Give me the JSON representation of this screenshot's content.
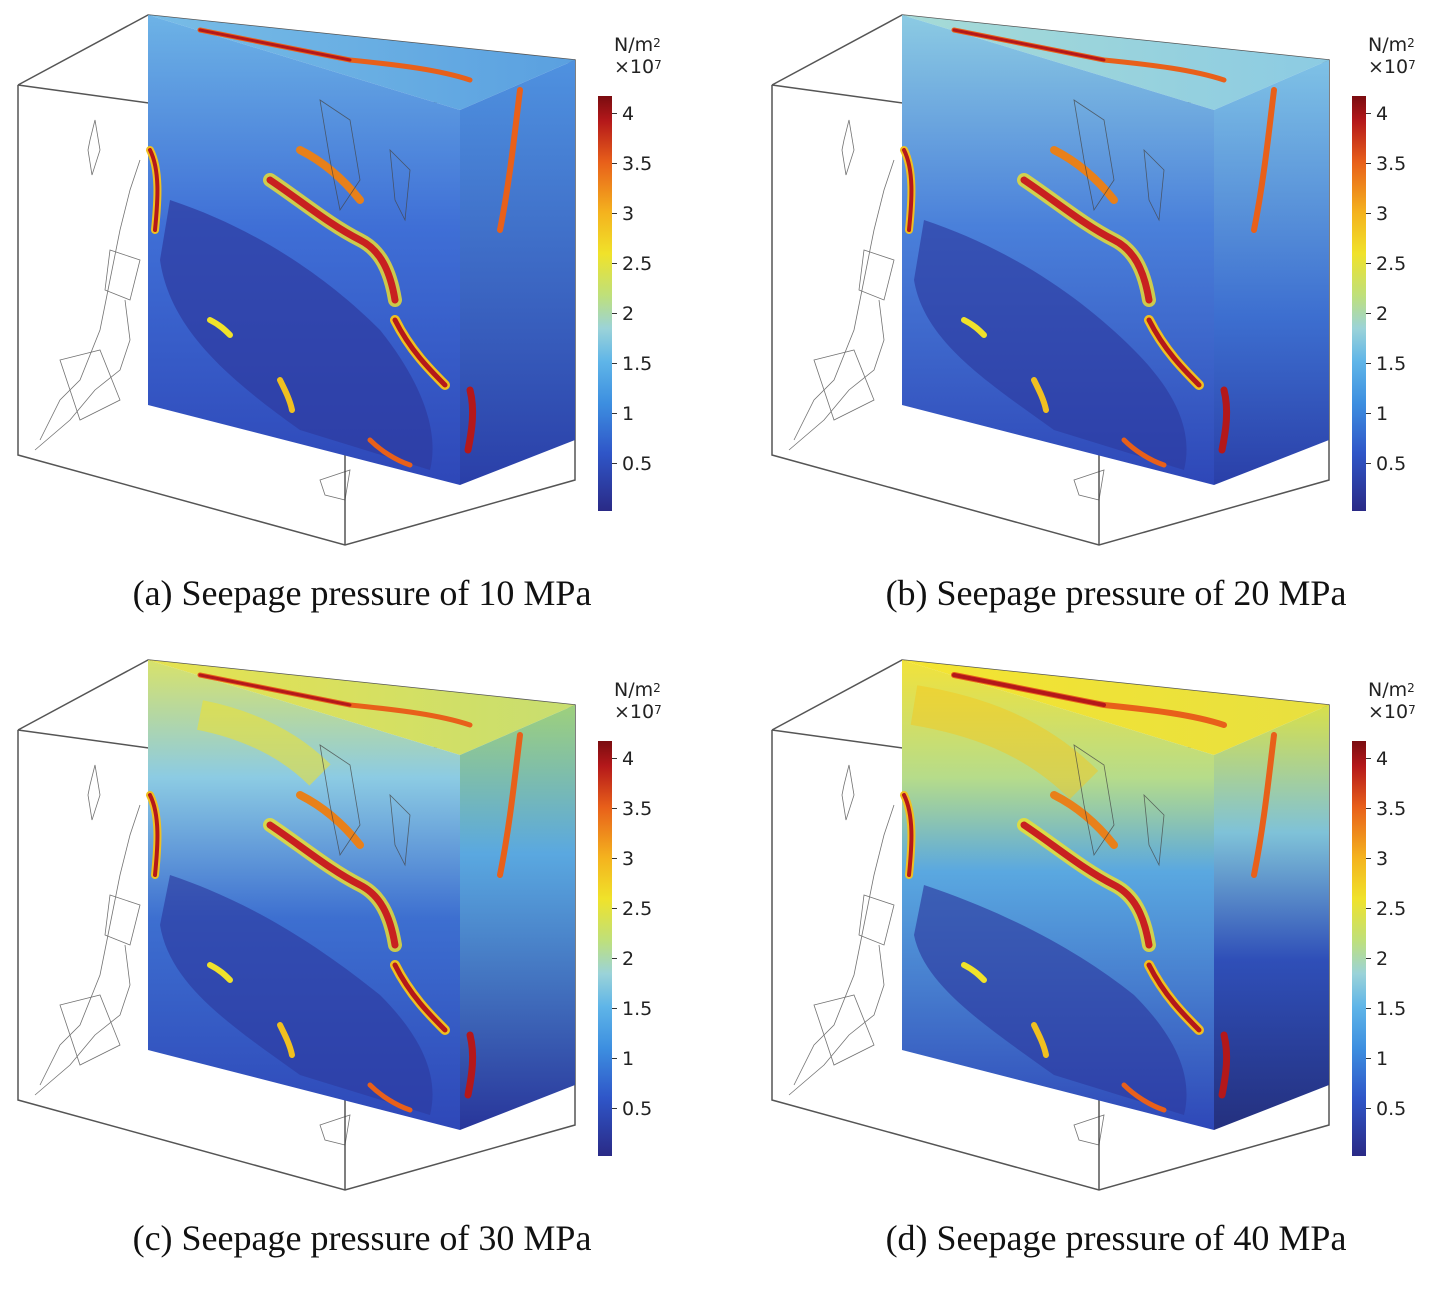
{
  "figure": {
    "panels": [
      {
        "caption": "(a) Seepage pressure of 10 MPa",
        "seepage_pressure_MPa": 10,
        "colorbar": {
          "unit": "N/m",
          "unit_exp": "2",
          "scale": "×10",
          "scale_exp": "7",
          "ticks": [
            "4",
            "3.5",
            "3",
            "2.5",
            "2",
            "1.5",
            "1",
            "0.5"
          ],
          "range": [
            0,
            4.2
          ]
        }
      },
      {
        "caption": "(b) Seepage pressure of 20 MPa",
        "seepage_pressure_MPa": 20,
        "colorbar": {
          "unit": "N/m",
          "unit_exp": "2",
          "scale": "×10",
          "scale_exp": "7",
          "ticks": [
            "4",
            "3.5",
            "3",
            "2.5",
            "2",
            "1.5",
            "1",
            "0.5"
          ],
          "range": [
            0,
            4.2
          ]
        }
      },
      {
        "caption": "(c) Seepage pressure of 30 MPa",
        "seepage_pressure_MPa": 30,
        "colorbar": {
          "unit": "N/m",
          "unit_exp": "2",
          "scale": "×10",
          "scale_exp": "7",
          "ticks": [
            "4",
            "3.5",
            "3",
            "2.5",
            "2",
            "1.5",
            "1",
            "0.5"
          ],
          "range": [
            0,
            4.2
          ]
        }
      },
      {
        "caption": "(d) Seepage pressure of 40 MPa",
        "seepage_pressure_MPa": 40,
        "colorbar": {
          "unit": "N/m",
          "unit_exp": "2",
          "scale": "×10",
          "scale_exp": "7",
          "ticks": [
            "4",
            "3.5",
            "3",
            "2.5",
            "2",
            "1.5",
            "1",
            "0.5"
          ],
          "range": [
            0,
            4.2
          ]
        }
      }
    ]
  },
  "colors": {
    "low": "#2a2a86",
    "mid": "#8fd0e0",
    "yellow": "#f0e22a",
    "high": "#b4181a",
    "box_line": "#555555"
  }
}
